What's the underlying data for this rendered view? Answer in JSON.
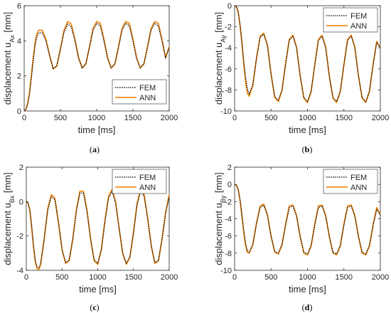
{
  "chart_data": [
    {
      "type": "line",
      "caption": "(a)",
      "xlabel": "time [ms]",
      "ylabel": "displacement u",
      "ylabel_sub": "Ax",
      "ylabel_unit": " [mm]",
      "xlim": [
        0,
        2000
      ],
      "ylim": [
        0,
        6
      ],
      "xticks": [
        0,
        500,
        1000,
        1500,
        2000
      ],
      "yticks": [
        0,
        2,
        4,
        6
      ],
      "legend_position": "bottom-right",
      "series": [
        {
          "name": "FEM",
          "style": "dotted",
          "color": "#000000",
          "x": [
            0,
            25,
            50,
            75,
            100,
            125,
            150,
            175,
            200,
            250,
            300,
            350,
            400,
            450,
            500,
            550,
            600,
            650,
            700,
            750,
            800,
            850,
            900,
            950,
            1000,
            1050,
            1100,
            1150,
            1200,
            1250,
            1300,
            1350,
            1400,
            1450,
            1500,
            1550,
            1600,
            1650,
            1700,
            1750,
            1800,
            1850,
            1900,
            1950,
            2000
          ],
          "values": [
            0,
            0.1,
            0.4,
            1.0,
            1.9,
            2.9,
            3.7,
            4.2,
            4.45,
            4.45,
            4.0,
            3.15,
            2.4,
            2.6,
            3.5,
            4.5,
            4.95,
            4.8,
            4.0,
            3.0,
            2.45,
            2.7,
            3.6,
            4.6,
            5.0,
            4.85,
            4.0,
            3.0,
            2.45,
            2.7,
            3.6,
            4.6,
            5.0,
            4.85,
            4.0,
            3.0,
            2.45,
            2.7,
            3.6,
            4.6,
            5.0,
            4.85,
            4.0,
            3.0,
            3.65
          ]
        },
        {
          "name": "ANN",
          "style": "solid",
          "color": "#f28e1c",
          "x": [
            0,
            25,
            50,
            75,
            100,
            125,
            150,
            175,
            200,
            250,
            300,
            350,
            400,
            450,
            500,
            550,
            600,
            650,
            700,
            750,
            800,
            850,
            900,
            950,
            1000,
            1050,
            1100,
            1150,
            1200,
            1250,
            1300,
            1350,
            1400,
            1450,
            1500,
            1550,
            1600,
            1650,
            1700,
            1750,
            1800,
            1850,
            1900,
            1950,
            2000
          ],
          "values": [
            0,
            0.1,
            0.45,
            1.1,
            2.05,
            3.05,
            3.9,
            4.4,
            4.6,
            4.6,
            4.1,
            3.2,
            2.4,
            2.55,
            3.55,
            4.6,
            5.1,
            4.95,
            4.1,
            3.05,
            2.45,
            2.65,
            3.65,
            4.7,
            5.1,
            5.0,
            4.1,
            3.05,
            2.45,
            2.65,
            3.65,
            4.7,
            5.1,
            5.0,
            4.1,
            3.05,
            2.45,
            2.65,
            3.65,
            4.7,
            5.1,
            5.0,
            4.1,
            3.05,
            3.65
          ]
        }
      ]
    },
    {
      "type": "line",
      "caption": "(b)",
      "xlabel": "time [ms]",
      "ylabel": "displacement u",
      "ylabel_sub": "Ay",
      "ylabel_unit": " [mm]",
      "xlim": [
        0,
        2000
      ],
      "ylim": [
        -10,
        0
      ],
      "xticks": [
        0,
        500,
        1000,
        1500,
        2000
      ],
      "yticks": [
        -10,
        -8,
        -6,
        -4,
        -2,
        0
      ],
      "legend_position": "top-right",
      "series": [
        {
          "name": "FEM",
          "style": "dotted",
          "color": "#000000",
          "x": [
            0,
            25,
            50,
            75,
            100,
            125,
            150,
            175,
            200,
            250,
            300,
            350,
            400,
            450,
            500,
            550,
            600,
            650,
            700,
            750,
            800,
            850,
            900,
            950,
            1000,
            1050,
            1100,
            1150,
            1200,
            1250,
            1300,
            1350,
            1400,
            1450,
            1500,
            1550,
            1600,
            1650,
            1700,
            1750,
            1800,
            1850,
            1900,
            1950,
            2000
          ],
          "values": [
            0,
            -0.1,
            -0.6,
            -1.8,
            -3.4,
            -5.2,
            -6.8,
            -7.9,
            -8.4,
            -7.5,
            -5.0,
            -3.0,
            -2.7,
            -3.8,
            -6.5,
            -8.6,
            -9.0,
            -8.0,
            -5.5,
            -3.3,
            -2.9,
            -4.0,
            -6.7,
            -8.7,
            -9.1,
            -8.1,
            -5.6,
            -3.3,
            -2.9,
            -4.0,
            -6.7,
            -8.7,
            -9.1,
            -8.1,
            -5.6,
            -3.3,
            -2.9,
            -4.0,
            -6.7,
            -8.7,
            -9.1,
            -8.1,
            -5.6,
            -3.5,
            -4.0
          ]
        },
        {
          "name": "ANN",
          "style": "solid",
          "color": "#f28e1c",
          "x": [
            0,
            25,
            50,
            75,
            100,
            125,
            150,
            175,
            200,
            250,
            300,
            350,
            400,
            450,
            500,
            550,
            600,
            650,
            700,
            750,
            800,
            850,
            900,
            950,
            1000,
            1050,
            1100,
            1150,
            1200,
            1250,
            1300,
            1350,
            1400,
            1450,
            1500,
            1550,
            1600,
            1650,
            1700,
            1750,
            1800,
            1850,
            1900,
            1950,
            2000
          ],
          "values": [
            0,
            -0.1,
            -0.6,
            -1.9,
            -3.6,
            -5.5,
            -7.2,
            -8.3,
            -8.6,
            -7.6,
            -5.0,
            -2.9,
            -2.6,
            -3.7,
            -6.5,
            -8.7,
            -9.1,
            -8.1,
            -5.5,
            -3.2,
            -2.8,
            -3.9,
            -6.7,
            -8.8,
            -9.2,
            -8.2,
            -5.6,
            -3.2,
            -2.8,
            -3.9,
            -6.7,
            -8.8,
            -9.2,
            -8.2,
            -5.6,
            -3.2,
            -2.8,
            -3.9,
            -6.7,
            -8.8,
            -9.2,
            -8.2,
            -5.6,
            -3.4,
            -4.0
          ]
        }
      ]
    },
    {
      "type": "line",
      "caption": "(c)",
      "xlabel": "time [ms]",
      "ylabel": "displacement u",
      "ylabel_sub": "Bx",
      "ylabel_unit": " [mm]",
      "xlim": [
        0,
        2000
      ],
      "ylim": [
        -4,
        2
      ],
      "xticks": [
        0,
        500,
        1000,
        1500,
        2000
      ],
      "yticks": [
        -4,
        -2,
        0,
        2
      ],
      "legend_position": "top-right",
      "series": [
        {
          "name": "FEM",
          "style": "dotted",
          "color": "#000000",
          "x": [
            0,
            25,
            50,
            75,
            100,
            125,
            150,
            175,
            200,
            250,
            300,
            350,
            400,
            450,
            500,
            550,
            600,
            650,
            700,
            750,
            800,
            850,
            900,
            950,
            1000,
            1050,
            1100,
            1150,
            1200,
            1250,
            1300,
            1350,
            1400,
            1450,
            1500,
            1550,
            1600,
            1650,
            1700,
            1750,
            1800,
            1850,
            1900,
            1950,
            2000
          ],
          "values": [
            0,
            -0.1,
            -0.5,
            -1.4,
            -2.5,
            -3.4,
            -3.8,
            -3.85,
            -3.6,
            -2.2,
            -0.5,
            0.3,
            0.1,
            -1.2,
            -2.8,
            -3.55,
            -3.4,
            -2.2,
            -0.6,
            0.5,
            0.5,
            -0.6,
            -2.2,
            -3.4,
            -3.6,
            -2.8,
            -1.2,
            0.2,
            0.6,
            -0.1,
            -1.6,
            -3.0,
            -3.6,
            -3.2,
            -1.8,
            -0.2,
            0.6,
            0.3,
            -1.0,
            -2.6,
            -3.55,
            -3.4,
            -2.2,
            -0.7,
            0.3
          ]
        },
        {
          "name": "ANN",
          "style": "solid",
          "color": "#f28e1c",
          "x": [
            0,
            25,
            50,
            75,
            100,
            125,
            150,
            175,
            200,
            250,
            300,
            350,
            400,
            450,
            500,
            550,
            600,
            650,
            700,
            750,
            800,
            850,
            900,
            950,
            1000,
            1050,
            1100,
            1150,
            1200,
            1250,
            1300,
            1350,
            1400,
            1450,
            1500,
            1550,
            1600,
            1650,
            1700,
            1750,
            1800,
            1850,
            1900,
            1950,
            2000
          ],
          "values": [
            0,
            -0.1,
            -0.5,
            -1.5,
            -2.6,
            -3.5,
            -3.9,
            -3.95,
            -3.7,
            -2.2,
            -0.4,
            0.4,
            0.2,
            -1.2,
            -2.8,
            -3.6,
            -3.45,
            -2.2,
            -0.5,
            0.6,
            0.6,
            -0.5,
            -2.2,
            -3.45,
            -3.65,
            -2.8,
            -1.1,
            0.3,
            0.7,
            0.0,
            -1.6,
            -3.05,
            -3.65,
            -3.25,
            -1.8,
            -0.1,
            0.7,
            0.4,
            -1.0,
            -2.6,
            -3.6,
            -3.45,
            -2.2,
            -0.6,
            0.4
          ]
        }
      ]
    },
    {
      "type": "line",
      "caption": "(d)",
      "xlabel": "time [ms]",
      "ylabel": "displacement u",
      "ylabel_sub": "By",
      "ylabel_unit": " [mm]",
      "xlim": [
        0,
        2000
      ],
      "ylim": [
        -10,
        2
      ],
      "xticks": [
        0,
        500,
        1000,
        1500,
        2000
      ],
      "yticks": [
        -10,
        -8,
        -6,
        -4,
        -2,
        0,
        2
      ],
      "legend_position": "top-right",
      "series": [
        {
          "name": "FEM",
          "style": "dotted",
          "color": "#000000",
          "x": [
            0,
            25,
            50,
            75,
            100,
            125,
            150,
            175,
            200,
            250,
            300,
            350,
            400,
            450,
            500,
            550,
            600,
            650,
            700,
            750,
            800,
            850,
            900,
            950,
            1000,
            1050,
            1100,
            1150,
            1200,
            1250,
            1300,
            1350,
            1400,
            1450,
            1500,
            1550,
            1600,
            1650,
            1700,
            1750,
            1800,
            1850,
            1900,
            1950,
            2000
          ],
          "values": [
            0,
            -0.1,
            -0.6,
            -1.8,
            -3.5,
            -5.3,
            -6.8,
            -7.7,
            -7.9,
            -7.0,
            -4.6,
            -2.7,
            -2.4,
            -3.6,
            -6.0,
            -7.8,
            -8.0,
            -7.0,
            -4.7,
            -2.7,
            -2.5,
            -3.7,
            -6.1,
            -7.9,
            -8.1,
            -7.1,
            -4.7,
            -2.7,
            -2.5,
            -3.7,
            -6.1,
            -7.9,
            -8.1,
            -7.1,
            -4.7,
            -2.7,
            -2.5,
            -3.7,
            -6.1,
            -7.9,
            -8.1,
            -7.1,
            -4.8,
            -2.9,
            -3.6
          ]
        },
        {
          "name": "ANN",
          "style": "solid",
          "color": "#f28e1c",
          "x": [
            0,
            25,
            50,
            75,
            100,
            125,
            150,
            175,
            200,
            250,
            300,
            350,
            400,
            450,
            500,
            550,
            600,
            650,
            700,
            750,
            800,
            850,
            900,
            950,
            1000,
            1050,
            1100,
            1150,
            1200,
            1250,
            1300,
            1350,
            1400,
            1450,
            1500,
            1550,
            1600,
            1650,
            1700,
            1750,
            1800,
            1850,
            1900,
            1950,
            2000
          ],
          "values": [
            0,
            -0.1,
            -0.6,
            -1.9,
            -3.7,
            -5.6,
            -7.1,
            -7.9,
            -8.0,
            -7.0,
            -4.5,
            -2.5,
            -2.3,
            -3.5,
            -6.0,
            -7.9,
            -8.1,
            -7.1,
            -4.6,
            -2.5,
            -2.4,
            -3.6,
            -6.1,
            -8.0,
            -8.2,
            -7.2,
            -4.6,
            -2.5,
            -2.4,
            -3.6,
            -6.1,
            -8.0,
            -8.2,
            -7.2,
            -4.6,
            -2.5,
            -2.4,
            -3.6,
            -6.1,
            -8.0,
            -8.2,
            -7.2,
            -4.7,
            -2.7,
            -3.5
          ]
        }
      ]
    }
  ]
}
